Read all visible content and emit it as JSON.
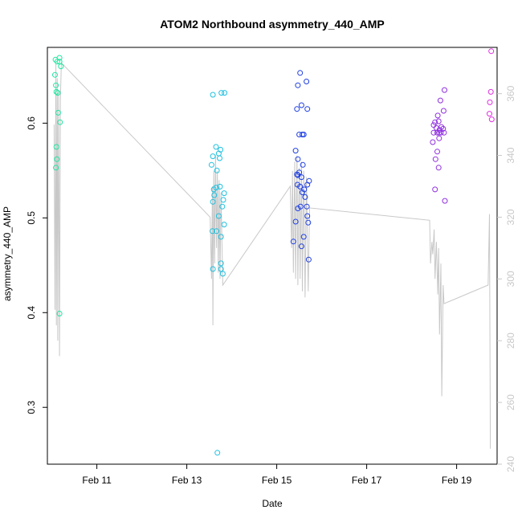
{
  "chart_data": {
    "type": "scatter",
    "title": "ATOM2 Northbound asymmetry_440_AMP",
    "xlabel": "Date",
    "ylabel": "asymmetry_440_AMP",
    "x_unit": "day-of-February",
    "xlim": [
      9.9,
      19.9
    ],
    "ylim": [
      0.24,
      0.68
    ],
    "y2lim": [
      240,
      375
    ],
    "x_ticks": [
      {
        "value": 11,
        "label": "Feb 11"
      },
      {
        "value": 13,
        "label": "Feb 13"
      },
      {
        "value": 15,
        "label": "Feb 15"
      },
      {
        "value": 17,
        "label": "Feb 17"
      },
      {
        "value": 19,
        "label": "Feb 19"
      }
    ],
    "y_ticks": [
      {
        "value": 0.3,
        "label": "0.3"
      },
      {
        "value": 0.4,
        "label": "0.4"
      },
      {
        "value": 0.5,
        "label": "0.5"
      },
      {
        "value": 0.6,
        "label": "0.6"
      }
    ],
    "y2_ticks": [
      {
        "value": 240,
        "label": "240"
      },
      {
        "value": 260,
        "label": "260"
      },
      {
        "value": 280,
        "label": "280"
      },
      {
        "value": 300,
        "label": "300"
      },
      {
        "value": 320,
        "label": "320"
      },
      {
        "value": 340,
        "label": "340"
      },
      {
        "value": 360,
        "label": "360"
      }
    ],
    "grid": false,
    "series": [
      {
        "color": "#20e6a0",
        "points": [
          [
            10.08,
            0.667
          ],
          [
            10.12,
            0.665
          ],
          [
            10.17,
            0.669
          ],
          [
            10.2,
            0.66
          ],
          [
            10.17,
            0.665
          ],
          [
            10.07,
            0.651
          ],
          [
            10.09,
            0.64
          ],
          [
            10.1,
            0.633
          ],
          [
            10.13,
            0.632
          ],
          [
            10.14,
            0.611
          ],
          [
            10.18,
            0.601
          ],
          [
            10.1,
            0.575
          ],
          [
            10.11,
            0.562
          ],
          [
            10.09,
            0.553
          ],
          [
            10.17,
            0.399
          ]
        ]
      },
      {
        "color": "#20c0e0",
        "points": [
          [
            13.58,
            0.63
          ],
          [
            13.77,
            0.632
          ],
          [
            13.84,
            0.632
          ],
          [
            13.65,
            0.575
          ],
          [
            13.75,
            0.572
          ],
          [
            13.71,
            0.568
          ],
          [
            13.73,
            0.563
          ],
          [
            13.58,
            0.565
          ],
          [
            13.55,
            0.556
          ],
          [
            13.67,
            0.55
          ],
          [
            13.74,
            0.533
          ],
          [
            13.65,
            0.532
          ],
          [
            13.6,
            0.53
          ],
          [
            13.61,
            0.524
          ],
          [
            13.83,
            0.526
          ],
          [
            13.81,
            0.519
          ],
          [
            13.58,
            0.517
          ],
          [
            13.79,
            0.512
          ],
          [
            13.71,
            0.502
          ],
          [
            13.57,
            0.486
          ],
          [
            13.66,
            0.486
          ],
          [
            13.83,
            0.493
          ],
          [
            13.76,
            0.48
          ],
          [
            13.76,
            0.452
          ],
          [
            13.58,
            0.446
          ],
          [
            13.76,
            0.446
          ],
          [
            13.8,
            0.441
          ],
          [
            13.68,
            0.252
          ]
        ]
      },
      {
        "color": "#2040e0",
        "points": [
          [
            15.52,
            0.653
          ],
          [
            15.66,
            0.644
          ],
          [
            15.47,
            0.64
          ],
          [
            15.55,
            0.619
          ],
          [
            15.45,
            0.615
          ],
          [
            15.68,
            0.615
          ],
          [
            15.5,
            0.588
          ],
          [
            15.57,
            0.588
          ],
          [
            15.6,
            0.588
          ],
          [
            15.42,
            0.571
          ],
          [
            15.47,
            0.562
          ],
          [
            15.58,
            0.556
          ],
          [
            15.5,
            0.548
          ],
          [
            15.45,
            0.546
          ],
          [
            15.47,
            0.545
          ],
          [
            15.55,
            0.543
          ],
          [
            15.72,
            0.539
          ],
          [
            15.46,
            0.535
          ],
          [
            15.52,
            0.533
          ],
          [
            15.68,
            0.535
          ],
          [
            15.61,
            0.53
          ],
          [
            15.57,
            0.527
          ],
          [
            15.63,
            0.522
          ],
          [
            15.53,
            0.512
          ],
          [
            15.47,
            0.51
          ],
          [
            15.67,
            0.512
          ],
          [
            15.68,
            0.502
          ],
          [
            15.42,
            0.496
          ],
          [
            15.7,
            0.495
          ],
          [
            15.6,
            0.48
          ],
          [
            15.37,
            0.475
          ],
          [
            15.55,
            0.47
          ],
          [
            15.71,
            0.456
          ]
        ]
      },
      {
        "color": "#9030e0",
        "points": [
          [
            18.52,
            0.601
          ],
          [
            18.6,
            0.602
          ],
          [
            18.73,
            0.635
          ],
          [
            18.64,
            0.624
          ],
          [
            18.49,
            0.598
          ],
          [
            18.55,
            0.595
          ],
          [
            18.62,
            0.593
          ],
          [
            18.7,
            0.594
          ],
          [
            18.66,
            0.596
          ],
          [
            18.49,
            0.59
          ],
          [
            18.57,
            0.59
          ],
          [
            18.65,
            0.59
          ],
          [
            18.61,
            0.59
          ],
          [
            18.72,
            0.59
          ],
          [
            18.47,
            0.58
          ],
          [
            18.61,
            0.584
          ],
          [
            18.57,
            0.57
          ],
          [
            18.53,
            0.562
          ],
          [
            18.6,
            0.553
          ],
          [
            18.52,
            0.53
          ],
          [
            18.74,
            0.518
          ],
          [
            18.71,
            0.613
          ],
          [
            18.58,
            0.608
          ]
        ]
      },
      {
        "color": "#e030e0",
        "points": [
          [
            19.77,
            0.676
          ],
          [
            19.76,
            0.633
          ],
          [
            19.74,
            0.622
          ],
          [
            19.73,
            0.61
          ],
          [
            19.78,
            0.604
          ]
        ]
      }
    ],
    "line2": {
      "color": "#c8c8c8",
      "axis": "y2",
      "points": [
        [
          10.05,
          350
        ],
        [
          10.07,
          290
        ],
        [
          10.09,
          370
        ],
        [
          10.1,
          285
        ],
        [
          10.12,
          365
        ],
        [
          10.13,
          280
        ],
        [
          10.15,
          360
        ],
        [
          10.17,
          275
        ],
        [
          10.19,
          358
        ],
        [
          10.21,
          370
        ],
        [
          13.52,
          320
        ],
        [
          13.55,
          300
        ],
        [
          13.57,
          330
        ],
        [
          13.58,
          285
        ],
        [
          13.6,
          335
        ],
        [
          13.62,
          305
        ],
        [
          13.64,
          340
        ],
        [
          13.66,
          310
        ],
        [
          13.68,
          335
        ],
        [
          13.7,
          302
        ],
        [
          13.72,
          332
        ],
        [
          13.74,
          300
        ],
        [
          13.76,
          328
        ],
        [
          13.8,
          298
        ],
        [
          15.3,
          330
        ],
        [
          15.33,
          310
        ],
        [
          15.35,
          335
        ],
        [
          15.37,
          302
        ],
        [
          15.4,
          338
        ],
        [
          15.42,
          300
        ],
        [
          15.45,
          340
        ],
        [
          15.47,
          298
        ],
        [
          15.5,
          336
        ],
        [
          15.52,
          300
        ],
        [
          15.55,
          338
        ],
        [
          15.57,
          296
        ],
        [
          15.6,
          335
        ],
        [
          15.63,
          294
        ],
        [
          15.66,
          333
        ],
        [
          15.7,
          296
        ],
        [
          15.73,
          323
        ],
        [
          18.4,
          319
        ],
        [
          18.42,
          305
        ],
        [
          18.45,
          312
        ],
        [
          18.47,
          308
        ],
        [
          18.5,
          316
        ],
        [
          18.52,
          300
        ],
        [
          18.55,
          312
        ],
        [
          18.58,
          295
        ],
        [
          18.6,
          310
        ],
        [
          18.62,
          282
        ],
        [
          18.65,
          305
        ],
        [
          18.67,
          262
        ],
        [
          18.7,
          298
        ],
        [
          18.72,
          292
        ],
        [
          19.7,
          298
        ],
        [
          19.73,
          321
        ],
        [
          19.75,
          245
        ]
      ]
    }
  }
}
